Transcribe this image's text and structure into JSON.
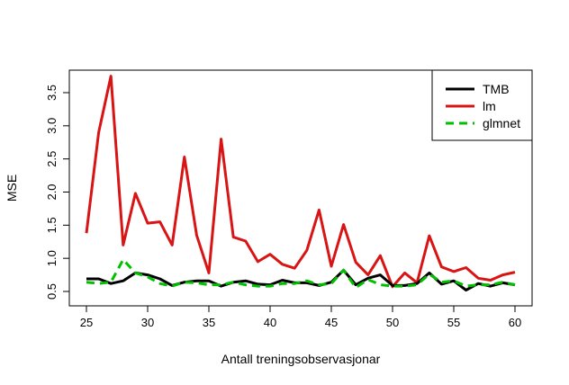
{
  "chart_data": {
    "type": "line",
    "title": "",
    "xlabel": "Antall treningsobservasjonar",
    "ylabel": "MSE",
    "xlim": [
      25,
      60
    ],
    "ylim": [
      0.5,
      3.8
    ],
    "xticks": [
      25,
      30,
      35,
      40,
      45,
      50,
      55,
      60
    ],
    "xtick_labels": [
      "25",
      "30",
      "35",
      "40",
      "45",
      "50",
      "55",
      "60"
    ],
    "yticks": [
      0.5,
      1.0,
      1.5,
      2.0,
      2.5,
      3.0,
      3.5
    ],
    "ytick_labels": [
      "0.5",
      "1.0",
      "1.5",
      "2.0",
      "2.5",
      "3.0",
      "3.5"
    ],
    "grid": false,
    "legend": {
      "placement": "top-right"
    },
    "x": [
      25,
      26,
      27,
      28,
      29,
      30,
      31,
      32,
      33,
      34,
      35,
      36,
      37,
      38,
      39,
      40,
      41,
      42,
      43,
      44,
      45,
      46,
      47,
      48,
      49,
      50,
      51,
      52,
      53,
      54,
      55,
      56,
      57,
      58,
      59,
      60
    ],
    "series": [
      {
        "name": "TMB",
        "color": "#000000",
        "dash": "solid",
        "values": [
          0.69,
          0.69,
          0.62,
          0.66,
          0.78,
          0.75,
          0.69,
          0.59,
          0.64,
          0.66,
          0.66,
          0.58,
          0.64,
          0.66,
          0.61,
          0.6,
          0.67,
          0.63,
          0.63,
          0.59,
          0.64,
          0.82,
          0.6,
          0.7,
          0.75,
          0.59,
          0.59,
          0.62,
          0.78,
          0.61,
          0.66,
          0.52,
          0.62,
          0.58,
          0.63,
          0.6
        ]
      },
      {
        "name": "lm",
        "color": "#d81414",
        "dash": "solid",
        "values": [
          1.38,
          2.9,
          3.75,
          1.2,
          1.98,
          1.53,
          1.55,
          1.2,
          2.53,
          1.35,
          0.78,
          2.8,
          1.32,
          1.26,
          0.95,
          1.06,
          0.91,
          0.85,
          1.12,
          1.73,
          0.88,
          1.51,
          0.94,
          0.75,
          1.04,
          0.57,
          0.78,
          0.63,
          1.34,
          0.87,
          0.8,
          0.86,
          0.7,
          0.67,
          0.75,
          0.79
        ]
      },
      {
        "name": "glmnet",
        "color": "#00c000",
        "dash": "dashed",
        "values": [
          0.64,
          0.62,
          0.64,
          0.98,
          0.78,
          0.72,
          0.62,
          0.58,
          0.64,
          0.63,
          0.6,
          0.6,
          0.64,
          0.6,
          0.58,
          0.58,
          0.62,
          0.62,
          0.66,
          0.6,
          0.62,
          0.82,
          0.56,
          0.68,
          0.6,
          0.58,
          0.58,
          0.6,
          0.76,
          0.64,
          0.66,
          0.58,
          0.6,
          0.6,
          0.64,
          0.6
        ]
      }
    ]
  }
}
